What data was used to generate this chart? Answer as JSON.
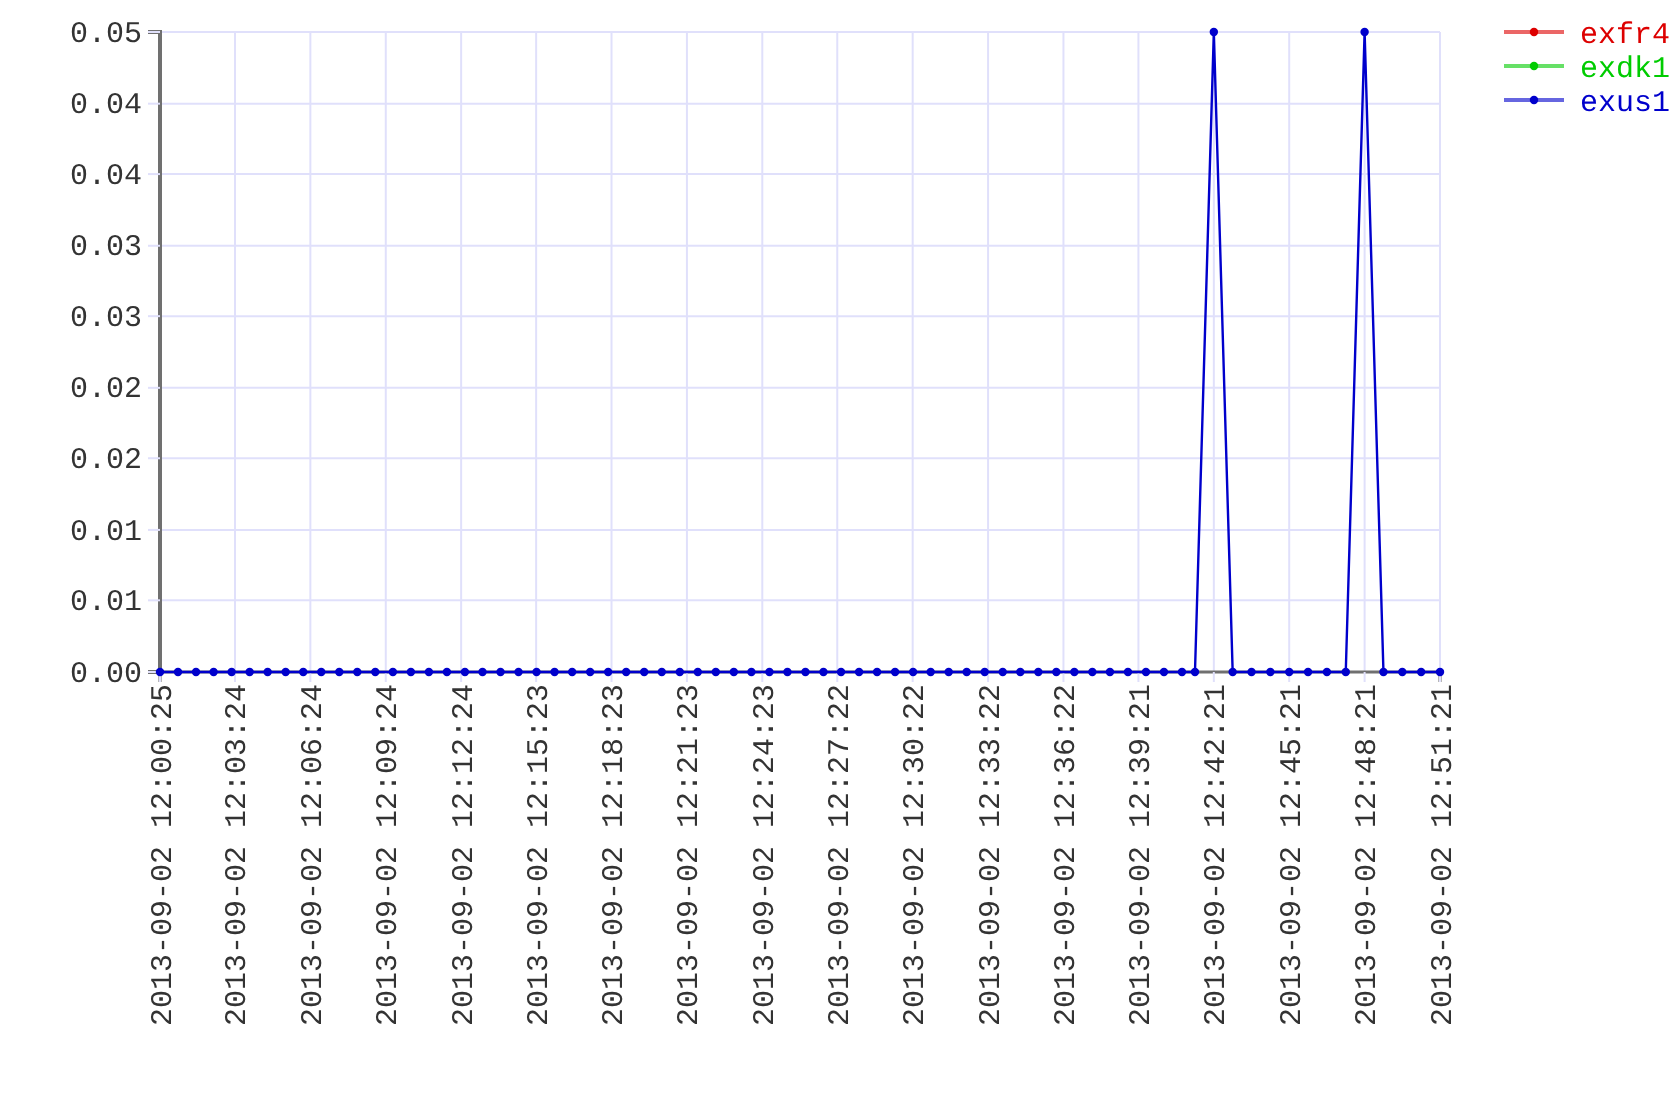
{
  "chart_data": {
    "type": "line",
    "x": [
      "2013-09-02T12:00:25",
      "2013-09-02T12:01:08",
      "2013-09-02T12:01:51",
      "2013-09-02T12:02:33",
      "2013-09-02T12:03:16",
      "2013-09-02T12:03:59",
      "2013-09-02T12:04:42",
      "2013-09-02T12:05:25",
      "2013-09-02T12:06:07",
      "2013-09-02T12:06:50",
      "2013-09-02T12:07:33",
      "2013-09-02T12:08:16",
      "2013-09-02T12:08:59",
      "2013-09-02T12:09:41",
      "2013-09-02T12:10:24",
      "2013-09-02T12:11:07",
      "2013-09-02T12:11:50",
      "2013-09-02T12:12:33",
      "2013-09-02T12:13:15",
      "2013-09-02T12:13:58",
      "2013-09-02T12:14:41",
      "2013-09-02T12:15:24",
      "2013-09-02T12:16:07",
      "2013-09-02T12:16:49",
      "2013-09-02T12:17:32",
      "2013-09-02T12:18:15",
      "2013-09-02T12:18:58",
      "2013-09-02T12:19:41",
      "2013-09-02T12:20:23",
      "2013-09-02T12:21:06",
      "2013-09-02T12:21:49",
      "2013-09-02T12:22:32",
      "2013-09-02T12:23:15",
      "2013-09-02T12:23:57",
      "2013-09-02T12:24:40",
      "2013-09-02T12:25:23",
      "2013-09-02T12:26:06",
      "2013-09-02T12:26:49",
      "2013-09-02T12:27:31",
      "2013-09-02T12:28:14",
      "2013-09-02T12:28:57",
      "2013-09-02T12:29:40",
      "2013-09-02T12:30:23",
      "2013-09-02T12:31:05",
      "2013-09-02T12:31:48",
      "2013-09-02T12:32:31",
      "2013-09-02T12:33:14",
      "2013-09-02T12:33:57",
      "2013-09-02T12:34:39",
      "2013-09-02T12:35:22",
      "2013-09-02T12:36:05",
      "2013-09-02T12:36:48",
      "2013-09-02T12:37:31",
      "2013-09-02T12:38:13",
      "2013-09-02T12:38:56",
      "2013-09-02T12:39:39",
      "2013-09-02T12:40:22",
      "2013-09-02T12:41:05",
      "2013-09-02T12:41:36",
      "2013-09-02T12:42:21",
      "2013-09-02T12:43:06",
      "2013-09-02T12:43:51",
      "2013-09-02T12:44:36",
      "2013-09-02T12:45:21",
      "2013-09-02T12:46:06",
      "2013-09-02T12:46:51",
      "2013-09-02T12:47:36",
      "2013-09-02T12:48:21",
      "2013-09-02T12:49:06",
      "2013-09-02T12:49:51",
      "2013-09-02T12:50:36",
      "2013-09-02T12:51:21"
    ],
    "series": [
      {
        "name": "exfr4",
        "color": "#dd0000",
        "values": [
          null,
          null,
          null,
          null,
          null,
          null,
          null,
          null,
          null,
          null,
          null,
          null,
          null,
          null,
          null,
          null,
          null,
          null,
          null,
          null,
          null,
          null,
          null,
          null,
          null,
          null,
          null,
          null,
          null,
          null,
          null,
          null,
          null,
          null,
          null,
          null,
          null,
          null,
          null,
          null,
          null,
          null,
          null,
          null,
          null,
          null,
          null,
          null,
          null,
          null,
          null,
          null,
          null,
          null,
          null,
          null,
          null,
          null,
          null,
          null,
          null,
          null,
          null,
          null,
          null,
          null,
          null,
          null,
          null,
          null,
          null,
          null
        ]
      },
      {
        "name": "exdk1",
        "color": "#00cc00",
        "values": [
          null,
          null,
          null,
          null,
          null,
          null,
          null,
          null,
          null,
          null,
          null,
          null,
          null,
          null,
          null,
          null,
          null,
          null,
          null,
          null,
          null,
          null,
          null,
          null,
          null,
          null,
          null,
          null,
          null,
          null,
          null,
          null,
          null,
          null,
          null,
          null,
          null,
          null,
          null,
          null,
          null,
          null,
          null,
          null,
          null,
          null,
          null,
          null,
          null,
          null,
          null,
          null,
          null,
          null,
          null,
          null,
          null,
          null,
          null,
          null,
          null,
          null,
          null,
          null,
          null,
          null,
          null,
          null,
          null,
          null,
          null,
          null
        ]
      },
      {
        "name": "exus1",
        "color": "#0000cc",
        "values": [
          0,
          0,
          0,
          0,
          0,
          0,
          0,
          0,
          0,
          0,
          0,
          0,
          0,
          0,
          0,
          0,
          0,
          0,
          0,
          0,
          0,
          0,
          0,
          0,
          0,
          0,
          0,
          0,
          0,
          0,
          0,
          0,
          0,
          0,
          0,
          0,
          0,
          0,
          0,
          0,
          0,
          0,
          0,
          0,
          0,
          0,
          0,
          0,
          0,
          0,
          0,
          0,
          0,
          0,
          0,
          0,
          0,
          0,
          0,
          0.05,
          0,
          0,
          0,
          0,
          0,
          0,
          0,
          0.05,
          0,
          0,
          0,
          0
        ]
      }
    ],
    "xlim": [
      "2013-09-02T12:00:25",
      "2013-09-02T12:51:21"
    ],
    "xticks": [
      {
        "value": "2013-09-02T12:00:25",
        "label": "2013-09-02 12:00:25"
      },
      {
        "value": "2013-09-02T12:03:24",
        "label": "2013-09-02 12:03:24"
      },
      {
        "value": "2013-09-02T12:06:24",
        "label": "2013-09-02 12:06:24"
      },
      {
        "value": "2013-09-02T12:09:24",
        "label": "2013-09-02 12:09:24"
      },
      {
        "value": "2013-09-02T12:12:24",
        "label": "2013-09-02 12:12:24"
      },
      {
        "value": "2013-09-02T12:15:23",
        "label": "2013-09-02 12:15:23"
      },
      {
        "value": "2013-09-02T12:18:23",
        "label": "2013-09-02 12:18:23"
      },
      {
        "value": "2013-09-02T12:21:23",
        "label": "2013-09-02 12:21:23"
      },
      {
        "value": "2013-09-02T12:24:23",
        "label": "2013-09-02 12:24:23"
      },
      {
        "value": "2013-09-02T12:27:22",
        "label": "2013-09-02 12:27:22"
      },
      {
        "value": "2013-09-02T12:30:22",
        "label": "2013-09-02 12:30:22"
      },
      {
        "value": "2013-09-02T12:33:22",
        "label": "2013-09-02 12:33:22"
      },
      {
        "value": "2013-09-02T12:36:22",
        "label": "2013-09-02 12:36:22"
      },
      {
        "value": "2013-09-02T12:39:21",
        "label": "2013-09-02 12:39:21"
      },
      {
        "value": "2013-09-02T12:42:21",
        "label": "2013-09-02 12:42:21"
      },
      {
        "value": "2013-09-02T12:45:21",
        "label": "2013-09-02 12:45:21"
      },
      {
        "value": "2013-09-02T12:48:21",
        "label": "2013-09-02 12:48:21"
      },
      {
        "value": "2013-09-02T12:51:21",
        "label": "2013-09-02 12:51:21"
      }
    ],
    "ylim": [
      0,
      0.05
    ],
    "yticks": [
      {
        "value": 0,
        "label": "0.00"
      },
      {
        "value": 0.0056,
        "label": "0.01"
      },
      {
        "value": 0.0111,
        "label": "0.01"
      },
      {
        "value": 0.0167,
        "label": "0.02"
      },
      {
        "value": 0.0222,
        "label": "0.02"
      },
      {
        "value": 0.0278,
        "label": "0.03"
      },
      {
        "value": 0.0333,
        "label": "0.03"
      },
      {
        "value": 0.0389,
        "label": "0.04"
      },
      {
        "value": 0.0444,
        "label": "0.04"
      },
      {
        "value": 0.05,
        "label": "0.05"
      }
    ],
    "grid": true,
    "legend": "top right",
    "marker": "circle"
  }
}
